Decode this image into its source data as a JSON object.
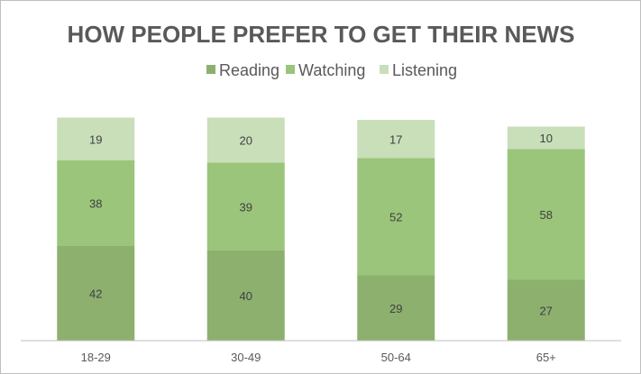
{
  "chart_data": {
    "type": "bar",
    "stacked": true,
    "title": "HOW PEOPLE PREFER TO GET THEIR NEWS",
    "xlabel": "",
    "ylabel": "",
    "categories": [
      "18-29",
      "30-49",
      "50-64",
      "65+"
    ],
    "series": [
      {
        "name": "Reading",
        "values": [
          42,
          40,
          29,
          27
        ],
        "color": "#8db06f"
      },
      {
        "name": "Watching",
        "values": [
          38,
          39,
          52,
          58
        ],
        "color": "#9bc57a"
      },
      {
        "name": "Listening",
        "values": [
          19,
          20,
          17,
          10
        ],
        "color": "#c8dfba"
      }
    ],
    "ylim": [
      0,
      100
    ],
    "grid": false,
    "legend": "top-center",
    "data_labels": true
  }
}
